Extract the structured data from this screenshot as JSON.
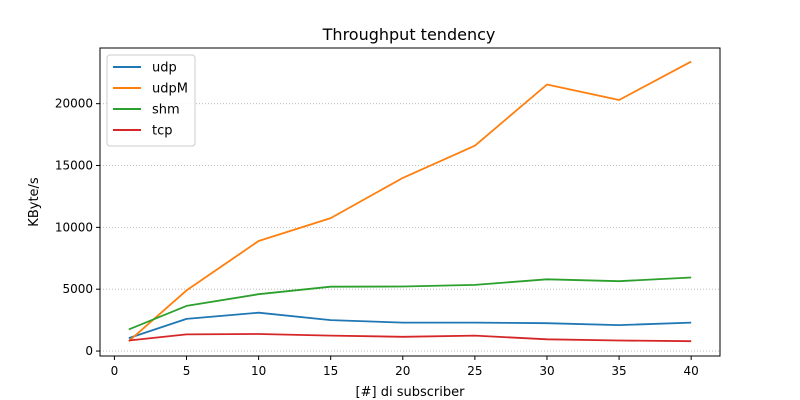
{
  "chart_data": {
    "type": "line",
    "title": "Throughput tendency",
    "xlabel": "[#] di subscriber",
    "ylabel": "KByte/s",
    "x": [
      1,
      5,
      10,
      15,
      20,
      25,
      30,
      35,
      40
    ],
    "xlim": [
      -1,
      42
    ],
    "ylim": [
      -400,
      24500
    ],
    "xticks": [
      0,
      5,
      10,
      15,
      20,
      25,
      30,
      35,
      40
    ],
    "yticks": [
      0,
      5000,
      10000,
      15000,
      20000
    ],
    "grid": "y-dotted",
    "legend": "top-left",
    "series": [
      {
        "name": "udp",
        "color": "#1f77b4",
        "values": [
          1050,
          2600,
          3100,
          2500,
          2300,
          2300,
          2250,
          2100,
          2300
        ]
      },
      {
        "name": "udpM",
        "color": "#ff7f0e",
        "values": [
          800,
          4900,
          8900,
          10750,
          14000,
          16600,
          21550,
          20300,
          23400
        ]
      },
      {
        "name": "shm",
        "color": "#2ca02c",
        "values": [
          1750,
          3650,
          4600,
          5200,
          5220,
          5350,
          5800,
          5650,
          5950
        ]
      },
      {
        "name": "tcp",
        "color": "#d62728",
        "values": [
          850,
          1350,
          1380,
          1250,
          1150,
          1250,
          950,
          850,
          800
        ]
      }
    ]
  }
}
